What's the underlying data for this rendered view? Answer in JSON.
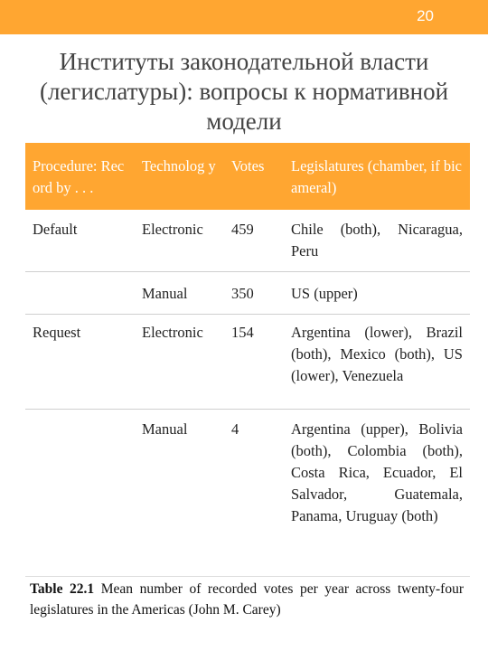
{
  "page_number": "20",
  "title_lines": [
    "Институты законодательной власти",
    "(легислатуры): вопросы к нормативной",
    "модели"
  ],
  "table": {
    "headers": [
      "Procedure: Record by . . .",
      "Technolog y",
      "Votes",
      "Legislatures (chamber, if bicameral)"
    ],
    "rows": [
      [
        "Default",
        "Electronic",
        "459",
        "Chile (both), Nicaragua, Peru"
      ],
      [
        "",
        "Manual",
        "350",
        "US (upper)"
      ],
      [
        "Request",
        "Electronic",
        "154",
        "Argentina (lower), Brazil (both), Mexico (both), US (lower), Venezuela"
      ],
      [
        "",
        "Manual",
        "4",
        "Argentina (upper), Bolivia (both), Colombia (both), Costa Rica, Ecuador, El Salvador, Guatemala, Panama, Uruguay (both)"
      ]
    ]
  },
  "caption": {
    "label": "Table 22.1",
    "text": "Mean number of recorded votes per year across twenty-four legislatures in the Americas (John M. Carey)"
  },
  "colors": {
    "accent": "#ffa631",
    "title_text": "#444444"
  }
}
